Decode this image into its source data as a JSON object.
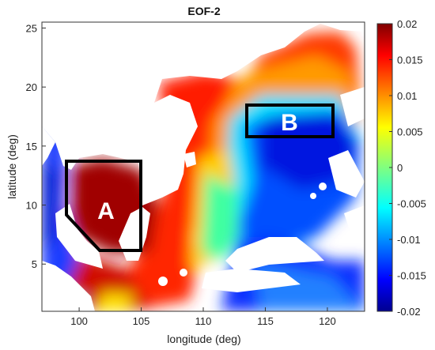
{
  "map": {
    "title": "EOF-2",
    "xlabel": "longitude (deg)",
    "ylabel": "latitude (deg)",
    "xlim": [
      97,
      123
    ],
    "ylim": [
      1,
      25.5
    ],
    "xticks": [
      100,
      105,
      110,
      115,
      120
    ],
    "yticks": [
      5,
      10,
      15,
      20,
      25
    ],
    "regions": [
      {
        "label": "A",
        "lon_range": [
          99,
          105
        ],
        "lat_range": [
          6,
          13.7
        ]
      },
      {
        "label": "B",
        "lon_range": [
          113.5,
          120.5
        ],
        "lat_range": [
          15.8,
          18.4
        ]
      }
    ]
  },
  "colorbar": {
    "min": -0.02,
    "max": 0.02,
    "ticks": [
      "0.02",
      "0.015",
      "0.01",
      "0.005",
      "0",
      "-0.005",
      "-0.01",
      "-0.015",
      "-0.02"
    ],
    "colormap": "jet",
    "stops": [
      "#00008f",
      "#0000ff",
      "#0080ff",
      "#00ffff",
      "#80ff80",
      "#ffff00",
      "#ff8000",
      "#ff0000",
      "#800000"
    ]
  }
}
